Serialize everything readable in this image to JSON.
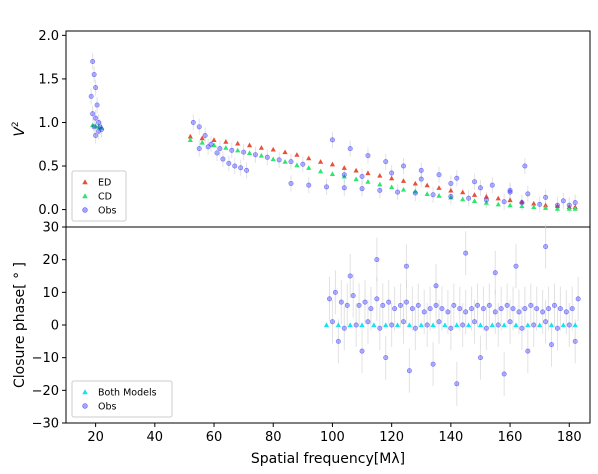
{
  "chart_data": [
    {
      "type": "scatter",
      "panel": "top",
      "ylabel": "V",
      "ylabel_sup": "2",
      "xlim": [
        10,
        187
      ],
      "ylim": [
        -0.2,
        2.05
      ],
      "y_ticks": [
        0.0,
        0.5,
        1.0,
        1.5,
        2.0
      ],
      "y_tick_labels": [
        "0.0",
        "0.5",
        "1.0",
        "1.5",
        "2.0"
      ],
      "legend_position": "bottom-left",
      "series": [
        {
          "name": "ED",
          "marker": "triangle",
          "color": "#e8503a",
          "x": [
            52,
            56,
            60,
            64,
            68,
            72,
            76,
            80,
            84,
            88,
            92,
            96,
            100,
            104,
            108,
            112,
            116,
            120,
            124,
            128,
            132,
            136,
            140,
            144,
            148,
            152,
            156,
            160,
            164,
            168,
            172,
            176,
            180,
            182
          ],
          "y": [
            0.84,
            0.82,
            0.8,
            0.78,
            0.76,
            0.74,
            0.71,
            0.69,
            0.66,
            0.63,
            0.59,
            0.55,
            0.52,
            0.48,
            0.45,
            0.42,
            0.39,
            0.36,
            0.33,
            0.3,
            0.28,
            0.25,
            0.22,
            0.2,
            0.17,
            0.15,
            0.13,
            0.11,
            0.09,
            0.07,
            0.05,
            0.04,
            0.03,
            0.03
          ]
        },
        {
          "name": "CD",
          "marker": "triangle",
          "color": "#2ee66e",
          "x": [
            19,
            20,
            21,
            22,
            52,
            56,
            60,
            64,
            68,
            72,
            76,
            80,
            84,
            88,
            92,
            96,
            100,
            104,
            108,
            112,
            116,
            120,
            124,
            128,
            132,
            136,
            140,
            144,
            148,
            152,
            156,
            160,
            164,
            168,
            172,
            176,
            180,
            182
          ],
          "y": [
            0.97,
            0.96,
            0.95,
            0.94,
            0.8,
            0.77,
            0.74,
            0.71,
            0.68,
            0.65,
            0.62,
            0.58,
            0.55,
            0.51,
            0.48,
            0.44,
            0.41,
            0.38,
            0.35,
            0.32,
            0.29,
            0.26,
            0.23,
            0.21,
            0.18,
            0.16,
            0.14,
            0.12,
            0.1,
            0.08,
            0.06,
            0.05,
            0.04,
            0.03,
            0.02,
            0.01,
            0.01,
            0.01
          ]
        },
        {
          "name": "Obs",
          "marker": "circle",
          "color": "#1f1fff",
          "x": [
            18.5,
            19,
            19,
            19.5,
            19.5,
            20,
            20,
            20,
            20.5,
            21,
            21,
            21.5,
            22,
            53,
            55,
            57,
            59,
            61,
            63,
            65,
            67,
            69,
            71,
            55,
            58,
            62,
            66,
            70,
            74,
            78,
            82,
            86,
            90,
            86,
            92,
            98,
            104,
            110,
            116,
            122,
            128,
            134,
            140,
            146,
            152,
            158,
            164,
            170,
            176,
            180,
            100,
            106,
            112,
            118,
            124,
            130,
            136,
            142,
            148,
            154,
            160,
            166,
            172,
            178,
            182,
            104,
            110,
            120,
            130,
            140,
            150,
            160,
            165
          ],
          "y": [
            1.3,
            1.7,
            1.1,
            1.55,
            0.95,
            1.4,
            1.05,
            0.85,
            1.2,
            1.0,
            0.9,
            0.95,
            0.92,
            1.0,
            0.95,
            0.85,
            0.75,
            0.65,
            0.58,
            0.53,
            0.5,
            0.48,
            0.45,
            0.7,
            0.72,
            0.7,
            0.68,
            0.66,
            0.63,
            0.6,
            0.57,
            0.55,
            0.52,
            0.3,
            0.28,
            0.26,
            0.25,
            0.24,
            0.22,
            0.2,
            0.19,
            0.17,
            0.15,
            0.13,
            0.11,
            0.09,
            0.08,
            0.06,
            0.05,
            0.05,
            0.8,
            0.7,
            0.62,
            0.55,
            0.5,
            0.45,
            0.4,
            0.36,
            0.32,
            0.28,
            0.22,
            0.18,
            0.14,
            0.1,
            0.08,
            0.4,
            0.38,
            0.42,
            0.35,
            0.3,
            0.25,
            0.2,
            0.5
          ]
        }
      ]
    },
    {
      "type": "scatter",
      "panel": "bottom",
      "xlabel": "Spatial frequency[Mλ]",
      "ylabel": "Closure phase[ ° ]",
      "xlim": [
        10,
        187
      ],
      "ylim": [
        -30,
        30
      ],
      "x_ticks": [
        20,
        40,
        60,
        80,
        100,
        120,
        140,
        160,
        180
      ],
      "x_tick_labels": [
        "20",
        "40",
        "60",
        "80",
        "100",
        "120",
        "140",
        "160",
        "180"
      ],
      "y_ticks": [
        -30,
        -20,
        -10,
        0,
        10,
        20,
        30
      ],
      "y_tick_labels": [
        "−30",
        "−20",
        "−10",
        "0",
        "10",
        "20",
        "30"
      ],
      "legend_position": "bottom-left",
      "series": [
        {
          "name": "Both Models",
          "marker": "triangle",
          "color": "#16e2f0",
          "x": [
            98,
            102,
            106,
            110,
            114,
            118,
            122,
            126,
            130,
            134,
            138,
            142,
            146,
            150,
            154,
            158,
            162,
            166,
            170,
            174,
            178,
            182
          ],
          "y": [
            0,
            0,
            0,
            0,
            0,
            0,
            0,
            0,
            0,
            0,
            0,
            0,
            0,
            0,
            0,
            0,
            0,
            0,
            0,
            0,
            0,
            0
          ]
        },
        {
          "name": "Obs",
          "marker": "circle",
          "color": "#1f1fff",
          "x": [
            99,
            101,
            103,
            105,
            107,
            109,
            111,
            113,
            115,
            117,
            119,
            121,
            123,
            125,
            127,
            129,
            131,
            133,
            135,
            137,
            139,
            141,
            143,
            145,
            147,
            149,
            151,
            153,
            155,
            157,
            159,
            161,
            163,
            165,
            167,
            169,
            171,
            173,
            175,
            177,
            179,
            181,
            183,
            100,
            104,
            108,
            112,
            116,
            120,
            124,
            128,
            132,
            136,
            140,
            144,
            148,
            152,
            156,
            160,
            164,
            168,
            172,
            176,
            180,
            102,
            110,
            118,
            126,
            134,
            142,
            150,
            158,
            166,
            174,
            182,
            106,
            115,
            125,
            135,
            145,
            155,
            162,
            172
          ],
          "y": [
            8,
            10,
            7,
            6,
            9,
            6,
            7,
            5,
            8,
            6,
            7,
            5,
            6,
            7,
            5,
            6,
            4,
            5,
            6,
            5,
            4,
            6,
            5,
            4,
            5,
            6,
            5,
            6,
            4,
            5,
            6,
            5,
            4,
            5,
            6,
            5,
            4,
            5,
            6,
            5,
            4,
            5,
            8,
            1,
            -1,
            0,
            1,
            -1,
            0,
            1,
            -1,
            0,
            1,
            -1,
            0,
            1,
            -1,
            0,
            1,
            -1,
            0,
            1,
            -1,
            0,
            -5,
            -8,
            -10,
            -14,
            -12,
            -18,
            -10,
            -15,
            -8,
            -6,
            -5,
            15,
            20,
            18,
            12,
            22,
            16,
            18,
            24
          ]
        }
      ]
    }
  ]
}
